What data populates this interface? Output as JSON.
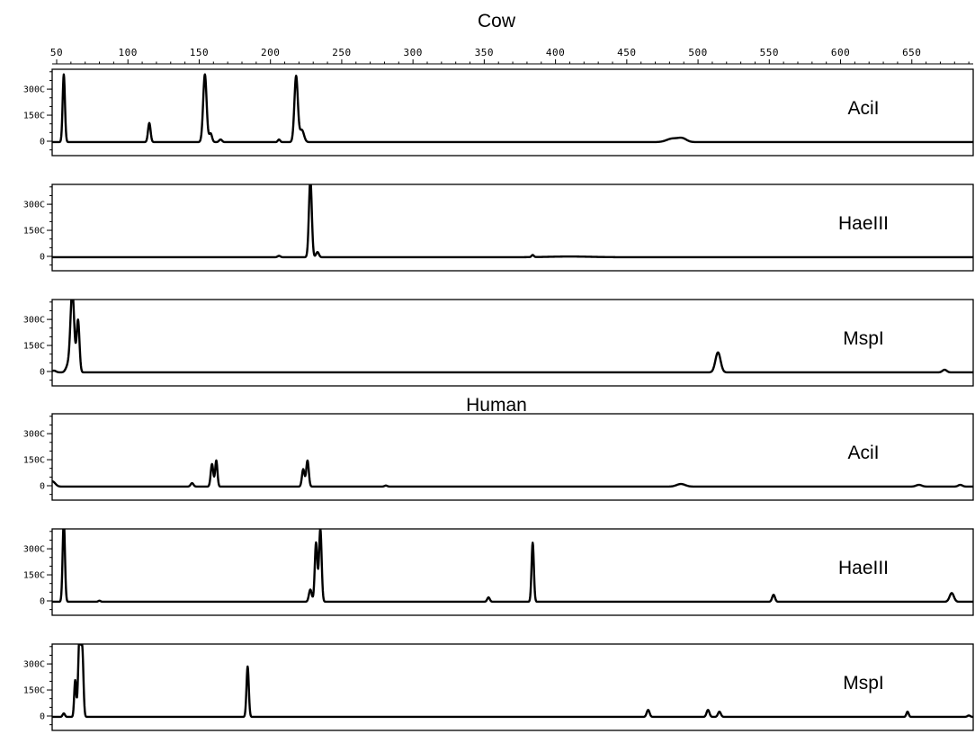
{
  "chart_data": {
    "type": "line",
    "title": "",
    "x_ticks": [
      50,
      100,
      150,
      200,
      250,
      300,
      350,
      400,
      450,
      500,
      550,
      600,
      650
    ],
    "xlim": [
      45,
      700
    ],
    "y_ticks": [
      {
        "value": 0,
        "label": "0"
      },
      {
        "value": 1500,
        "label": "150C"
      },
      {
        "value": 3000,
        "label": "300C"
      }
    ],
    "ylim": [
      -500,
      4300
    ],
    "groups": [
      {
        "name": "Cow",
        "panels": [
          {
            "enzyme": "AciI",
            "baseline": -50,
            "peaks": [
              [
                55,
                3900,
                0.8
              ],
              [
                115,
                1100,
                0.9
              ],
              [
                154,
                3900,
                1.2
              ],
              [
                158,
                500,
                1.0
              ],
              [
                165,
                150,
                1.0
              ],
              [
                206,
                150,
                0.8
              ],
              [
                218,
                3800,
                1.2
              ],
              [
                222,
                700,
                1.5
              ],
              [
                482,
                200,
                4.0
              ],
              [
                489,
                200,
                3.0
              ]
            ]
          },
          {
            "enzyme": "HaeIII",
            "baseline": -50,
            "peaks": [
              [
                206,
                80,
                1.0
              ],
              [
                228,
                4500,
                1.0
              ],
              [
                233,
                300,
                1.0
              ],
              [
                384,
                120,
                0.8
              ],
              [
                410,
                40,
                15.0
              ]
            ]
          },
          {
            "enzyme": "MspI",
            "baseline": -50,
            "peaks": [
              [
                48,
                100,
                1.5
              ],
              [
                58,
                400,
                1.5
              ],
              [
                61,
                4700,
                1.3
              ],
              [
                65,
                3000,
                1.0
              ],
              [
                514,
                1150,
                1.8
              ],
              [
                673,
                150,
                1.5
              ]
            ]
          }
        ]
      },
      {
        "name": "Human",
        "panels": [
          {
            "enzyme": "AciI",
            "baseline": -50,
            "peaks": [
              [
                47,
                300,
                2.0
              ],
              [
                145,
                200,
                1.0
              ],
              [
                159,
                1300,
                0.9
              ],
              [
                162,
                1500,
                0.8
              ],
              [
                223,
                1000,
                0.9
              ],
              [
                226,
                1500,
                0.9
              ],
              [
                281,
                60,
                1.0
              ],
              [
                488,
                150,
                3.0
              ],
              [
                655,
                100,
                2.0
              ],
              [
                684,
                100,
                1.5
              ]
            ]
          },
          {
            "enzyme": "HaeIII",
            "baseline": -50,
            "peaks": [
              [
                55,
                4700,
                0.8
              ],
              [
                80,
                60,
                0.8
              ],
              [
                228,
                700,
                1.0
              ],
              [
                232,
                3400,
                0.9
              ],
              [
                235,
                4200,
                0.9
              ],
              [
                353,
                250,
                0.9
              ],
              [
                384,
                3400,
                0.8
              ],
              [
                553,
                400,
                1.0
              ],
              [
                678,
                500,
                1.5
              ]
            ]
          },
          {
            "enzyme": "MspI",
            "baseline": -50,
            "peaks": [
              [
                55,
                200,
                0.8
              ],
              [
                63,
                2100,
                0.7
              ],
              [
                66,
                4600,
                0.9
              ],
              [
                68,
                3700,
                0.8
              ],
              [
                184,
                2900,
                0.8
              ],
              [
                465,
                400,
                1.0
              ],
              [
                507,
                400,
                1.0
              ],
              [
                515,
                300,
                1.0
              ],
              [
                647,
                300,
                0.8
              ],
              [
                690,
                80,
                1.0
              ]
            ]
          }
        ]
      }
    ]
  }
}
